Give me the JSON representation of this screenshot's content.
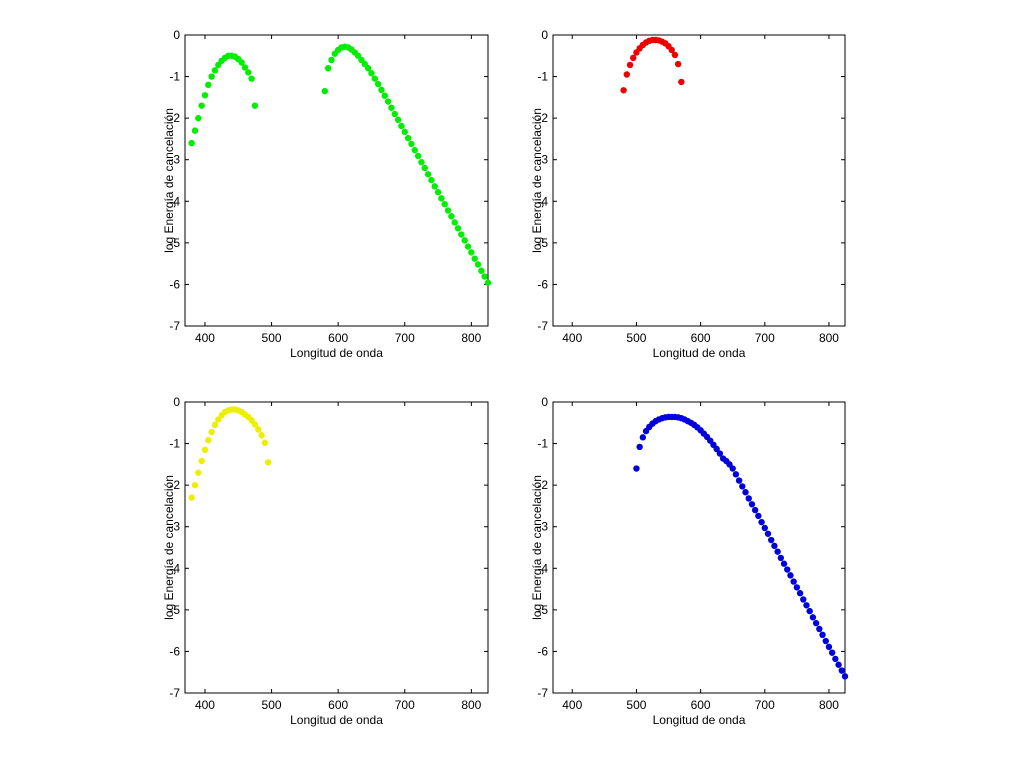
{
  "chart_data": [
    {
      "type": "scatter",
      "xlabel": "Longitud de onda",
      "ylabel": "log Energía de cancelación",
      "color": "#00ee00",
      "xlim": [
        370,
        825
      ],
      "ylim": [
        -7,
        0
      ],
      "xticks": [
        400,
        500,
        600,
        700,
        800
      ],
      "yticks": [
        0,
        -1,
        -2,
        -3,
        -4,
        -5,
        -6,
        -7
      ],
      "x": [
        380,
        385,
        390,
        395,
        400,
        405,
        410,
        415,
        420,
        425,
        430,
        435,
        440,
        445,
        450,
        455,
        460,
        465,
        470,
        475,
        580,
        585,
        590,
        595,
        600,
        605,
        610,
        615,
        620,
        625,
        630,
        635,
        640,
        645,
        650,
        655,
        660,
        665,
        670,
        675,
        680,
        685,
        690,
        695,
        700,
        705,
        710,
        715,
        720,
        725,
        730,
        735,
        740,
        745,
        750,
        755,
        760,
        765,
        770,
        775,
        780,
        785,
        790,
        795,
        800,
        805,
        810,
        815,
        820,
        825
      ],
      "values": [
        -2.6,
        -2.3,
        -2.0,
        -1.7,
        -1.45,
        -1.2,
        -1.0,
        -0.85,
        -0.72,
        -0.62,
        -0.55,
        -0.5,
        -0.5,
        -0.52,
        -0.58,
        -0.66,
        -0.78,
        -0.9,
        -1.05,
        -1.7,
        -1.35,
        -0.8,
        -0.6,
        -0.45,
        -0.36,
        -0.3,
        -0.28,
        -0.3,
        -0.35,
        -0.42,
        -0.5,
        -0.6,
        -0.7,
        -0.8,
        -0.92,
        -1.05,
        -1.18,
        -1.32,
        -1.46,
        -1.6,
        -1.75,
        -1.9,
        -2.04,
        -2.19,
        -2.33,
        -2.48,
        -2.62,
        -2.77,
        -2.91,
        -3.06,
        -3.2,
        -3.35,
        -3.49,
        -3.64,
        -3.78,
        -3.93,
        -4.07,
        -4.22,
        -4.36,
        -4.51,
        -4.65,
        -4.8,
        -4.94,
        -5.09,
        -5.23,
        -5.38,
        -5.52,
        -5.67,
        -5.81,
        -5.96
      ]
    },
    {
      "type": "scatter",
      "xlabel": "Longitud de onda",
      "ylabel": "log Energía de cancelación",
      "color": "#ee0000",
      "xlim": [
        370,
        825
      ],
      "ylim": [
        -7,
        0
      ],
      "xticks": [
        400,
        500,
        600,
        700,
        800
      ],
      "yticks": [
        0,
        -1,
        -2,
        -3,
        -4,
        -5,
        -6,
        -7
      ],
      "x": [
        480,
        485,
        490,
        495,
        500,
        505,
        510,
        515,
        520,
        525,
        530,
        535,
        540,
        545,
        550,
        555,
        560,
        565,
        570
      ],
      "values": [
        -1.33,
        -0.95,
        -0.72,
        -0.55,
        -0.42,
        -0.32,
        -0.24,
        -0.18,
        -0.14,
        -0.12,
        -0.12,
        -0.13,
        -0.16,
        -0.2,
        -0.27,
        -0.36,
        -0.48,
        -0.7,
        -1.13
      ]
    },
    {
      "type": "scatter",
      "xlabel": "Longitud de onda",
      "ylabel": "log Energía de cancelación",
      "color": "#eeee00",
      "xlim": [
        370,
        825
      ],
      "ylim": [
        -7,
        0
      ],
      "xticks": [
        400,
        500,
        600,
        700,
        800
      ],
      "yticks": [
        0,
        -1,
        -2,
        -3,
        -4,
        -5,
        -6,
        -7
      ],
      "x": [
        380,
        385,
        390,
        395,
        400,
        405,
        410,
        415,
        420,
        425,
        430,
        435,
        440,
        445,
        450,
        455,
        460,
        465,
        470,
        475,
        480,
        485,
        490,
        495
      ],
      "values": [
        -2.3,
        -2.0,
        -1.7,
        -1.42,
        -1.15,
        -0.92,
        -0.72,
        -0.55,
        -0.42,
        -0.32,
        -0.24,
        -0.2,
        -0.18,
        -0.18,
        -0.2,
        -0.24,
        -0.3,
        -0.36,
        -0.44,
        -0.54,
        -0.66,
        -0.8,
        -0.98,
        -1.45
      ]
    },
    {
      "type": "scatter",
      "xlabel": "Longitud de onda",
      "ylabel": "log Energía de cancelación",
      "color": "#0000dd",
      "xlim": [
        370,
        825
      ],
      "ylim": [
        -7,
        0
      ],
      "xticks": [
        400,
        500,
        600,
        700,
        800
      ],
      "yticks": [
        0,
        -1,
        -2,
        -3,
        -4,
        -5,
        -6,
        -7
      ],
      "x": [
        500,
        505,
        510,
        515,
        520,
        525,
        530,
        535,
        540,
        545,
        550,
        555,
        560,
        565,
        570,
        575,
        580,
        585,
        590,
        595,
        600,
        605,
        610,
        615,
        620,
        625,
        630,
        635,
        640,
        645,
        650,
        655,
        660,
        665,
        670,
        675,
        680,
        685,
        690,
        695,
        700,
        705,
        710,
        715,
        720,
        725,
        730,
        735,
        740,
        745,
        750,
        755,
        760,
        765,
        770,
        775,
        780,
        785,
        790,
        795,
        800,
        805,
        810,
        815,
        820,
        825
      ],
      "values": [
        -1.6,
        -1.08,
        -0.85,
        -0.7,
        -0.6,
        -0.52,
        -0.46,
        -0.42,
        -0.39,
        -0.37,
        -0.36,
        -0.36,
        -0.36,
        -0.37,
        -0.39,
        -0.42,
        -0.46,
        -0.5,
        -0.55,
        -0.61,
        -0.68,
        -0.76,
        -0.84,
        -0.93,
        -1.03,
        -1.13,
        -1.24,
        -1.36,
        -1.42,
        -1.5,
        -1.6,
        -1.74,
        -1.89,
        -2.03,
        -2.17,
        -2.32,
        -2.46,
        -2.6,
        -2.74,
        -2.89,
        -3.03,
        -3.17,
        -3.32,
        -3.46,
        -3.6,
        -3.75,
        -3.89,
        -4.03,
        -4.17,
        -4.32,
        -4.46,
        -4.6,
        -4.75,
        -4.89,
        -5.03,
        -5.18,
        -5.32,
        -5.46,
        -5.6,
        -5.75,
        -5.89,
        -6.03,
        -6.18,
        -6.32,
        -6.46,
        -6.6
      ]
    }
  ]
}
